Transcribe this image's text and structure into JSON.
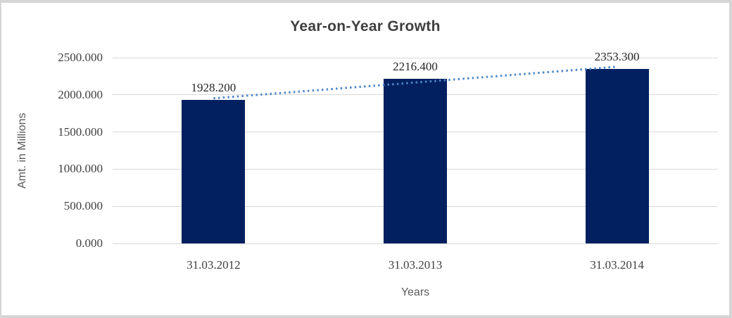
{
  "chart_data": {
    "type": "bar",
    "title": "Year-on-Year Growth",
    "xlabel": "Years",
    "ylabel": "Amt. in Millions",
    "categories": [
      "31.03.2012",
      "31.03.2013",
      "31.03.2014"
    ],
    "values": [
      1928.2,
      2216.4,
      2353.3
    ],
    "value_labels": [
      "1928.200",
      "2216.400",
      "2353.300"
    ],
    "yticks": [
      0,
      500,
      1000,
      1500,
      2000,
      2500
    ],
    "ytick_labels": [
      "0.000",
      "500.000",
      "1000.000",
      "1500.000",
      "2000.000",
      "2500.000"
    ],
    "ylim": [
      0,
      2500
    ],
    "grid": true,
    "legend": false,
    "trendline": {
      "type": "linear",
      "style": "dotted"
    }
  },
  "colors": {
    "bar_fill": "#022060",
    "trendline": "#4E86C8",
    "gridline": "#D9D9D9",
    "title": "#3F3F3F",
    "tick_label": "#3F3F3F",
    "data_label": "#262626",
    "axis_title": "#595959",
    "border": "#D5D5D5",
    "background": "#FFFFFF"
  }
}
